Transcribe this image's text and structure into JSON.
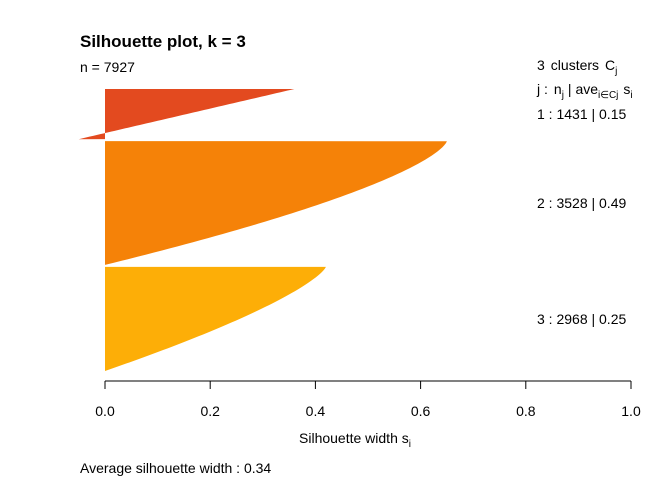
{
  "chart_data": {
    "type": "silhouette",
    "title_prefix": "Silhouette plot, k = ",
    "k": "3",
    "n_label": "n = 7927",
    "legend": {
      "header_count": "3",
      "header_text": "clusters",
      "header_symbol": "C",
      "header_symbol_sub": "j",
      "line2_j": "j :",
      "line2_n": "n",
      "line2_n_sub": "j",
      "line2_sep": "| ave",
      "line2_ave_sub": "i∈Cj",
      "line2_s": "s",
      "line2_s_sub": "i"
    },
    "clusters": [
      {
        "id": 1,
        "label": "1 :   1431  |  0.15",
        "size": 1431,
        "avg_width": 0.15,
        "max_width": 0.36,
        "min_width": -0.05,
        "color": "#E34A1F"
      },
      {
        "id": 2,
        "label": "2 :   3528  |  0.49",
        "size": 3528,
        "avg_width": 0.49,
        "max_width": 0.65,
        "min_width": 0.0,
        "color": "#F58208"
      },
      {
        "id": 3,
        "label": "3 :   2968  |  0.25",
        "size": 2968,
        "avg_width": 0.25,
        "max_width": 0.42,
        "min_width": 0.0,
        "color": "#FDAE07"
      }
    ],
    "x_axis": {
      "label": "Silhouette width s",
      "label_sub": "i",
      "ticks": [
        "0.0",
        "0.2",
        "0.4",
        "0.6",
        "0.8",
        "1.0"
      ],
      "range": [
        0,
        1
      ]
    },
    "avg_label": "Average silhouette width :  0.34"
  }
}
